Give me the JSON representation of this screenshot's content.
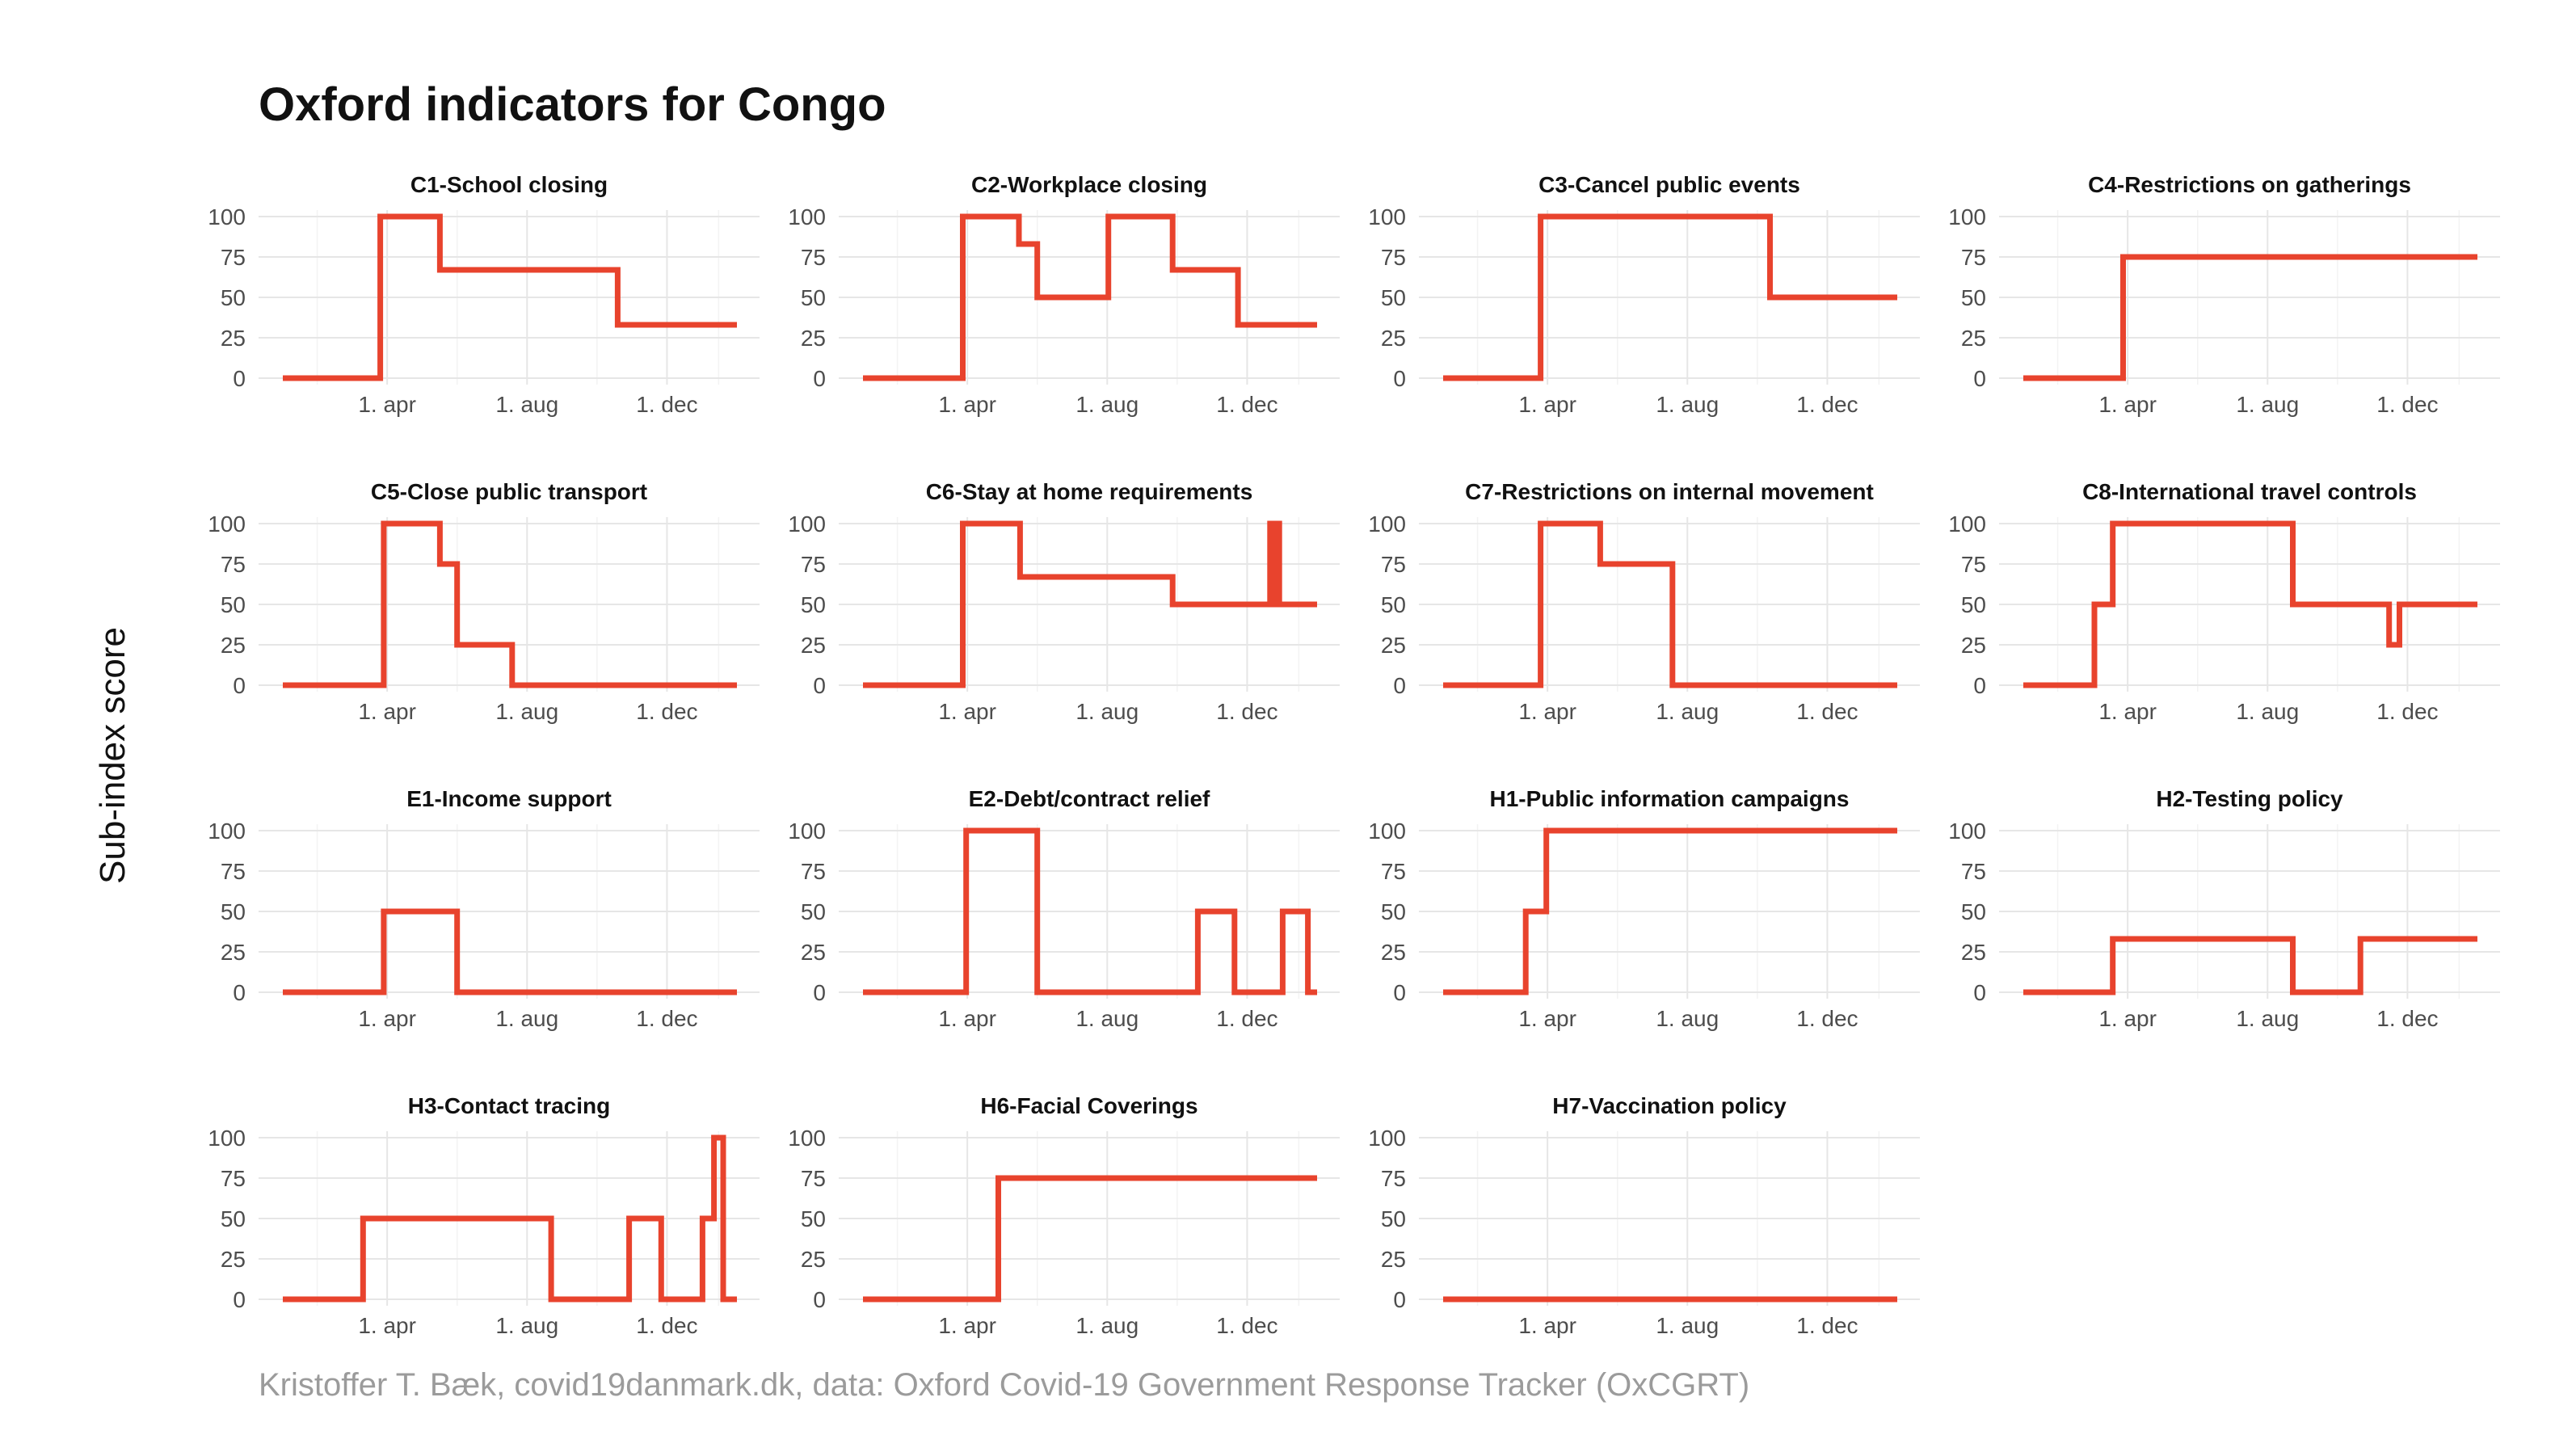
{
  "title": "Oxford indicators for Congo",
  "y_axis_label": "Sub-index score",
  "caption": "Kristoffer T. Bæk, covid19danmark.dk, data: Oxford Covid-19 Government Response Tracker (OxCGRT)",
  "colors": {
    "line": "#e8432d",
    "grid": "#e6e6e6"
  },
  "chart_data": {
    "type": "line",
    "layout": "faceted",
    "ylim": [
      0,
      100
    ],
    "yticks": [
      0,
      25,
      50,
      75,
      100
    ],
    "xlim_days_since_jan1_2020": [
      0,
      396
    ],
    "xticks": [
      {
        "label": "1. apr",
        "day": 91
      },
      {
        "label": "1. aug",
        "day": 213
      },
      {
        "label": "1. dec",
        "day": 335
      }
    ],
    "panels": [
      {
        "title": "C1-School closing",
        "steps": [
          [
            0,
            0
          ],
          [
            85,
            100
          ],
          [
            137,
            67
          ],
          [
            292,
            33
          ],
          [
            396,
            33
          ]
        ]
      },
      {
        "title": "C2-Workplace closing",
        "steps": [
          [
            0,
            0
          ],
          [
            87,
            100
          ],
          [
            136,
            83
          ],
          [
            152,
            50
          ],
          [
            214,
            100
          ],
          [
            270,
            67
          ],
          [
            327,
            33
          ],
          [
            396,
            33
          ]
        ]
      },
      {
        "title": "C3-Cancel public events",
        "steps": [
          [
            0,
            0
          ],
          [
            85,
            100
          ],
          [
            285,
            50
          ],
          [
            396,
            50
          ]
        ]
      },
      {
        "title": "C4-Restrictions on gatherings",
        "steps": [
          [
            0,
            0
          ],
          [
            87,
            75
          ],
          [
            396,
            75
          ]
        ]
      },
      {
        "title": "C5-Close public transport",
        "steps": [
          [
            0,
            0
          ],
          [
            88,
            100
          ],
          [
            137,
            75
          ],
          [
            152,
            25
          ],
          [
            200,
            0
          ],
          [
            396,
            0
          ]
        ]
      },
      {
        "title": "C6-Stay at home requirements",
        "steps": [
          [
            0,
            0
          ],
          [
            87,
            100
          ],
          [
            137,
            67
          ],
          [
            270,
            50
          ],
          [
            355,
            100
          ],
          [
            357,
            50
          ],
          [
            360,
            100
          ],
          [
            363,
            50
          ],
          [
            396,
            50
          ]
        ]
      },
      {
        "title": "C7-Restrictions on internal movement",
        "steps": [
          [
            0,
            0
          ],
          [
            85,
            100
          ],
          [
            137,
            75
          ],
          [
            200,
            0
          ],
          [
            396,
            0
          ]
        ]
      },
      {
        "title": "C8-International travel controls",
        "steps": [
          [
            0,
            0
          ],
          [
            62,
            50
          ],
          [
            78,
            100
          ],
          [
            235,
            50
          ],
          [
            319,
            25
          ],
          [
            328,
            50
          ],
          [
            396,
            50
          ]
        ]
      },
      {
        "title": "E1-Income support",
        "steps": [
          [
            0,
            0
          ],
          [
            88,
            50
          ],
          [
            152,
            0
          ],
          [
            396,
            0
          ]
        ]
      },
      {
        "title": "E2-Debt/contract relief",
        "steps": [
          [
            0,
            0
          ],
          [
            90,
            100
          ],
          [
            152,
            0
          ],
          [
            292,
            50
          ],
          [
            324,
            0
          ],
          [
            366,
            50
          ],
          [
            388,
            0
          ],
          [
            396,
            0
          ]
        ]
      },
      {
        "title": "H1-Public information campaigns",
        "steps": [
          [
            0,
            0
          ],
          [
            72,
            50
          ],
          [
            90,
            100
          ],
          [
            396,
            100
          ]
        ]
      },
      {
        "title": "H2-Testing policy",
        "steps": [
          [
            0,
            0
          ],
          [
            78,
            33
          ],
          [
            235,
            0
          ],
          [
            294,
            33
          ],
          [
            396,
            33
          ]
        ]
      },
      {
        "title": "H3-Contact tracing",
        "steps": [
          [
            0,
            0
          ],
          [
            70,
            50
          ],
          [
            234,
            0
          ],
          [
            302,
            50
          ],
          [
            330,
            0
          ],
          [
            366,
            50
          ],
          [
            376,
            100
          ],
          [
            384,
            0
          ],
          [
            396,
            0
          ]
        ]
      },
      {
        "title": "H6-Facial Coverings",
        "steps": [
          [
            0,
            0
          ],
          [
            118,
            75
          ],
          [
            396,
            75
          ]
        ]
      },
      {
        "title": "H7-Vaccination policy",
        "steps": [
          [
            0,
            0
          ],
          [
            396,
            0
          ]
        ]
      }
    ]
  }
}
